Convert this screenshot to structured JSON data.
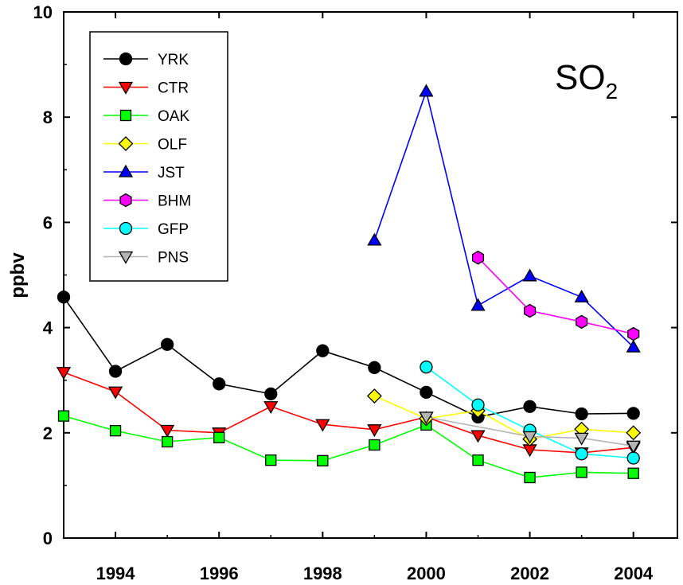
{
  "chart_data": {
    "type": "line",
    "ylabel": "ppbv",
    "xlabel": "",
    "annotation": {
      "main": "SO",
      "subscript": "2"
    },
    "xlim": [
      1993,
      2004.85
    ],
    "ylim": [
      0,
      10
    ],
    "x_ticks": [
      "1994",
      "1996",
      "1998",
      "2000",
      "2002",
      "2004"
    ],
    "y_ticks": [
      "0",
      "2",
      "4",
      "6",
      "8",
      "10"
    ],
    "legend_position": "top-left",
    "series": [
      {
        "name": "YRK",
        "color": "#000000",
        "fill": "#000000",
        "marker": "circle",
        "x": [
          1993,
          1994,
          1995,
          1996,
          1997,
          1998,
          1999,
          2000,
          2001,
          2002,
          2003,
          2004
        ],
        "y": [
          4.58,
          3.17,
          3.68,
          2.93,
          2.74,
          3.56,
          3.24,
          2.77,
          2.3,
          2.5,
          2.36,
          2.37
        ]
      },
      {
        "name": "CTR",
        "color": "#ff0000",
        "fill": "#ff0000",
        "marker": "triangle-down",
        "x": [
          1993,
          1994,
          1995,
          1996,
          1997,
          1998,
          1999,
          2000,
          2001,
          2002,
          2003,
          2004
        ],
        "y": [
          3.15,
          2.78,
          2.05,
          2.0,
          2.5,
          2.16,
          2.06,
          2.3,
          1.95,
          1.68,
          1.62,
          1.72
        ]
      },
      {
        "name": "OAK",
        "color": "#00ff00",
        "fill": "#00ff00",
        "marker": "square",
        "x": [
          1993,
          1994,
          1995,
          1996,
          1997,
          1998,
          1999,
          2000,
          2001,
          2002,
          2003,
          2004
        ],
        "y": [
          2.32,
          2.04,
          1.83,
          1.91,
          1.48,
          1.47,
          1.77,
          2.15,
          1.48,
          1.15,
          1.25,
          1.23
        ]
      },
      {
        "name": "OLF",
        "color": "#ffff00",
        "fill": "#ffff00",
        "marker": "diamond",
        "x": [
          1999,
          2000,
          2001,
          2002,
          2003,
          2004
        ],
        "y": [
          2.7,
          2.27,
          2.42,
          1.88,
          2.07,
          2.0
        ]
      },
      {
        "name": "JST",
        "color": "#0000ff",
        "fill": "#0000ff",
        "marker": "triangle-up",
        "x": [
          1999,
          2000,
          2001,
          2002,
          2003,
          2004
        ],
        "y": [
          5.66,
          8.49,
          4.42,
          4.98,
          4.58,
          3.63
        ]
      },
      {
        "name": "BHM",
        "color": "#ff00ff",
        "fill": "#ff00ff",
        "marker": "hexagon",
        "x": [
          2001,
          2002,
          2003,
          2004
        ],
        "y": [
          5.33,
          4.32,
          4.11,
          3.88
        ]
      },
      {
        "name": "GFP",
        "color": "#00ffff",
        "fill": "#00ffff",
        "marker": "circle",
        "x": [
          2000,
          2001,
          2002,
          2003,
          2004
        ],
        "y": [
          3.25,
          2.53,
          2.05,
          1.6,
          1.52
        ]
      },
      {
        "name": "PNS",
        "color": "#b4b4b4",
        "fill": "#b4b4b4",
        "marker": "triangle-down",
        "x": [
          2000,
          2002,
          2003,
          2004
        ],
        "y": [
          2.3,
          1.93,
          1.9,
          1.75
        ]
      }
    ]
  }
}
